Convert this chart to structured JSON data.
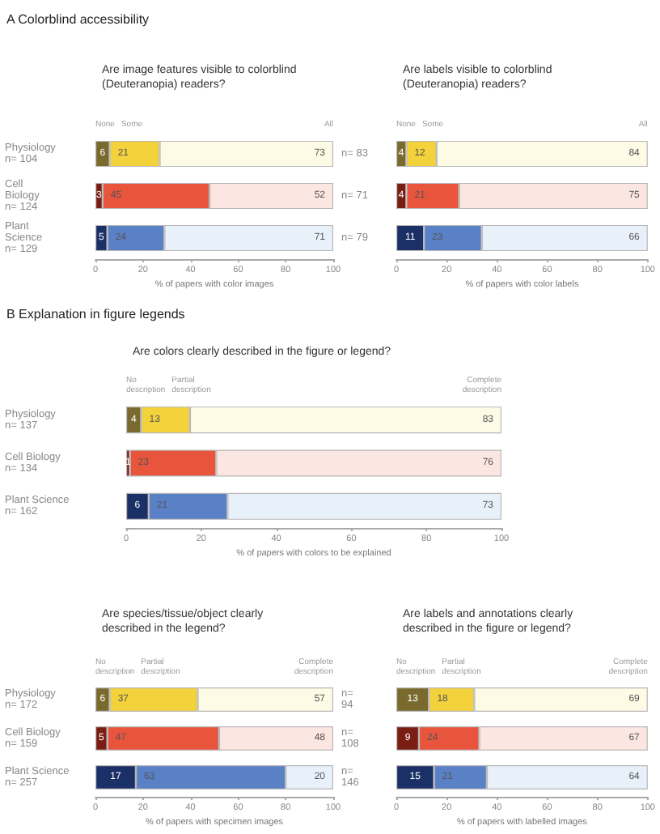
{
  "chart_data": [
    {
      "type": "bar",
      "orientation": "horizontal",
      "stacked": true,
      "annotations": [
        "A Colorblind accessibility"
      ],
      "title": "Are image features visible to colorblind (Deuteranopia) readers?",
      "xlabel": "% of papers with color images",
      "categories": [
        "Physiology\nn= 104",
        "Cell\nBiology\nn= 124",
        "Plant\nScience\nn= 129"
      ],
      "xlim": [
        0,
        100
      ],
      "xticks": [
        0,
        20,
        40,
        60,
        80,
        100
      ],
      "grid": false,
      "legend": false,
      "data_labels": true,
      "series": [
        {
          "name": "None",
          "colors": [
            "#7a6a2e",
            "#7a1e14",
            "#1c3068"
          ],
          "values": [
            6,
            3,
            5
          ]
        },
        {
          "name": "Some",
          "colors": [
            "#f4d23c",
            "#e8553c",
            "#5a80c6"
          ],
          "values": [
            21,
            45,
            24
          ]
        },
        {
          "name": "All",
          "colors": [
            "#fdfbe6",
            "#fce6e2",
            "#e8f0fa"
          ],
          "values": [
            73,
            52,
            71
          ]
        }
      ]
    },
    {
      "type": "bar",
      "orientation": "horizontal",
      "stacked": true,
      "title": "Are labels visible to colorblind (Deuteranopia) readers?",
      "xlabel": "% of papers with color labels",
      "categories": [
        "n= 83",
        "n= 71",
        "n= 79"
      ],
      "xlim": [
        0,
        100
      ],
      "xticks": [
        0,
        20,
        40,
        60,
        80,
        100
      ],
      "grid": false,
      "legend": false,
      "data_labels": true,
      "series": [
        {
          "name": "None",
          "colors": [
            "#7a6a2e",
            "#7a1e14",
            "#1c3068"
          ],
          "values": [
            4,
            4,
            11
          ]
        },
        {
          "name": "Some",
          "colors": [
            "#f4d23c",
            "#e8553c",
            "#5a80c6"
          ],
          "values": [
            12,
            21,
            23
          ]
        },
        {
          "name": "All",
          "colors": [
            "#fdfbe6",
            "#fce6e2",
            "#e8f0fa"
          ],
          "values": [
            84,
            75,
            66
          ]
        }
      ]
    },
    {
      "type": "bar",
      "orientation": "horizontal",
      "stacked": true,
      "annotations": [
        "B Explanation in figure legends"
      ],
      "title": "Are colors clearly described in the figure or legend?",
      "xlabel": "% of papers with colors to be explained",
      "categories": [
        "Physiology\nn= 137",
        "Cell Biology\nn= 134",
        "Plant Science\nn= 162"
      ],
      "xlim": [
        0,
        100
      ],
      "xticks": [
        0,
        20,
        40,
        60,
        80,
        100
      ],
      "grid": false,
      "legend": false,
      "data_labels": true,
      "series": [
        {
          "name": "No\ndescription",
          "colors": [
            "#7a6a2e",
            "#7a1e14",
            "#1c3068"
          ],
          "values": [
            4,
            1,
            6
          ]
        },
        {
          "name": "Partial\ndescription",
          "colors": [
            "#f4d23c",
            "#e8553c",
            "#5a80c6"
          ],
          "values": [
            13,
            23,
            21
          ]
        },
        {
          "name": "Complete\ndescription",
          "colors": [
            "#fdfbe6",
            "#fce6e2",
            "#e8f0fa"
          ],
          "values": [
            83,
            76,
            73
          ]
        }
      ]
    },
    {
      "type": "bar",
      "orientation": "horizontal",
      "stacked": true,
      "title": "Are species/tissue/object clearly described in the legend?",
      "xlabel": "% of papers with specimen images",
      "categories": [
        "Physiology\nn= 172",
        "Cell Biology\nn= 159",
        "Plant Science\nn= 257"
      ],
      "xlim": [
        0,
        100
      ],
      "xticks": [
        0,
        20,
        40,
        60,
        80,
        100
      ],
      "grid": false,
      "legend": false,
      "data_labels": true,
      "series": [
        {
          "name": "No\ndescription",
          "colors": [
            "#7a6a2e",
            "#7a1e14",
            "#1c3068"
          ],
          "values": [
            6,
            5,
            17
          ]
        },
        {
          "name": "Partial\ndescription",
          "colors": [
            "#f4d23c",
            "#e8553c",
            "#5a80c6"
          ],
          "values": [
            37,
            47,
            63
          ]
        },
        {
          "name": "Complete\ndescription",
          "colors": [
            "#fdfbe6",
            "#fce6e2",
            "#e8f0fa"
          ],
          "values": [
            57,
            48,
            20
          ]
        }
      ]
    },
    {
      "type": "bar",
      "orientation": "horizontal",
      "stacked": true,
      "title": "Are labels and annotations clearly described in the figure or legend?",
      "xlabel": "% of papers with labelled images",
      "categories": [
        "n=\n94",
        "n=\n108",
        "n=\n146"
      ],
      "xlim": [
        0,
        100
      ],
      "xticks": [
        0,
        20,
        40,
        60,
        80,
        100
      ],
      "grid": false,
      "legend": false,
      "data_labels": true,
      "series": [
        {
          "name": "No\ndescription",
          "colors": [
            "#7a6a2e",
            "#7a1e14",
            "#1c3068"
          ],
          "values": [
            13,
            9,
            15
          ]
        },
        {
          "name": "Partial\ndescription",
          "colors": [
            "#f4d23c",
            "#e8553c",
            "#5a80c6"
          ],
          "values": [
            18,
            24,
            21
          ]
        },
        {
          "name": "Complete\ndescription",
          "colors": [
            "#fdfbe6",
            "#fce6e2",
            "#e8f0fa"
          ],
          "values": [
            69,
            67,
            64
          ]
        }
      ]
    }
  ]
}
